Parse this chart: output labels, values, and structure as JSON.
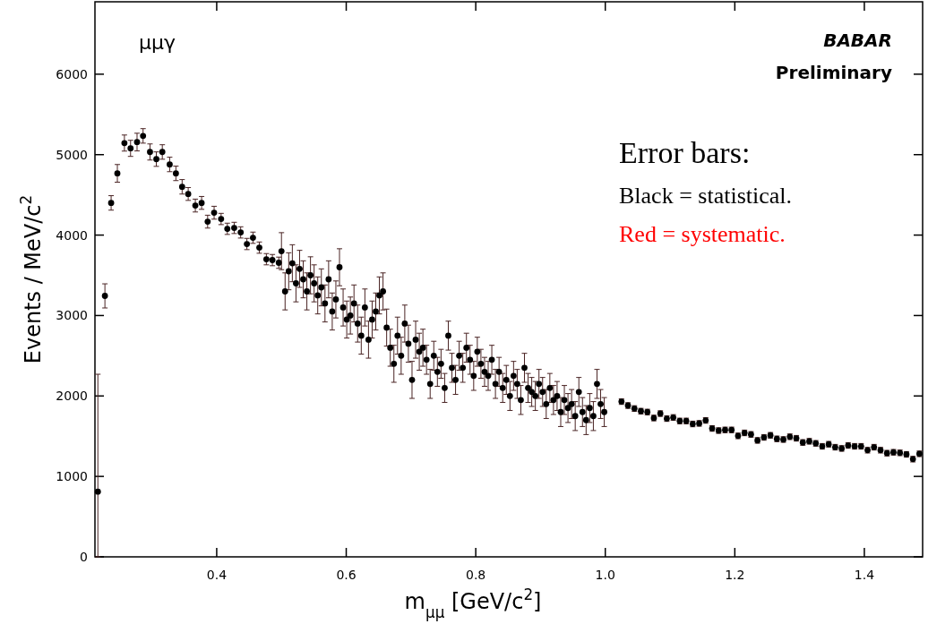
{
  "chart_data": {
    "type": "scatter",
    "xlabel": "m$_{μμ}$ [GeV/c$^{2}$]",
    "ylabel": "Events / MeV/c$^{2}$",
    "xlim": [
      0.212,
      1.49
    ],
    "ylim": [
      0,
      6900
    ],
    "xticks": [
      0.4,
      0.6,
      0.8,
      {
        "value": 1.0,
        "label": "1.0"
      },
      1.2,
      1.4
    ],
    "yticks": [
      0,
      1000,
      2000,
      3000,
      4000,
      5000,
      6000
    ],
    "marker": "circle",
    "grid": false,
    "annotations": [
      "μμγ",
      "BABAR",
      "Preliminary",
      "Error bars:",
      "Black = statistical.",
      "Red = systematic."
    ],
    "series": [
      {
        "color": "#000000",
        "x": [
          0.2165,
          0.2274,
          0.237,
          0.2466,
          0.2575,
          0.267,
          0.277,
          0.2863,
          0.297,
          0.3068,
          0.316,
          0.3274,
          0.337,
          0.3466,
          0.356,
          0.367,
          0.3767,
          0.386,
          0.396,
          0.4068,
          0.4164,
          0.427,
          0.437,
          0.4466,
          0.456,
          0.4658,
          0.4767,
          0.486,
          0.4959,
          0.5,
          0.5056,
          0.5112,
          0.5168,
          0.5224,
          0.528,
          0.5336,
          0.5392,
          0.5448,
          0.5504,
          0.556,
          0.5616,
          0.5672,
          0.5728,
          0.5784,
          0.584,
          0.5896,
          0.5952,
          0.6008,
          0.6064,
          0.612,
          0.6176,
          0.6232,
          0.6288,
          0.6344,
          0.64,
          0.6456,
          0.6512,
          0.6568,
          0.6624,
          0.668,
          0.6736,
          0.6792,
          0.6848,
          0.6904,
          0.696,
          0.7016,
          0.7072,
          0.7128,
          0.7184,
          0.724,
          0.7296,
          0.7352,
          0.7408,
          0.7464,
          0.752,
          0.7576,
          0.7632,
          0.7688,
          0.7744,
          0.78,
          0.7856,
          0.7912,
          0.7968,
          0.8024,
          0.808,
          0.8136,
          0.8192,
          0.8248,
          0.8304,
          0.836,
          0.8416,
          0.8472,
          0.8528,
          0.8584,
          0.864,
          0.8696,
          0.8752,
          0.8808,
          0.8864,
          0.892,
          0.8976,
          0.9032,
          0.9088,
          0.9144,
          0.92,
          0.9256,
          0.9312,
          0.9368,
          0.9424,
          0.948,
          0.9536,
          0.9592,
          0.9648,
          0.9704,
          0.976,
          0.9816,
          0.9872,
          0.9928,
          0.9984,
          1.025,
          1.035,
          1.045,
          1.055,
          1.065,
          1.075,
          1.085,
          1.095,
          1.105,
          1.115,
          1.125,
          1.135,
          1.145,
          1.155,
          1.165,
          1.175,
          1.185,
          1.195,
          1.205,
          1.215,
          1.225,
          1.235,
          1.245,
          1.255,
          1.265,
          1.275,
          1.285,
          1.295,
          1.305,
          1.315,
          1.325,
          1.335,
          1.345,
          1.355,
          1.365,
          1.375,
          1.385,
          1.395,
          1.405,
          1.415,
          1.425,
          1.435,
          1.445,
          1.455,
          1.465,
          1.475,
          1.485
        ],
        "values": [
          811,
          3244,
          4400,
          4767,
          5144,
          5078,
          5156,
          5233,
          5033,
          4944,
          5033,
          4878,
          4767,
          4600,
          4511,
          4367,
          4400,
          4167,
          4278,
          4200,
          4078,
          4089,
          4033,
          3889,
          3967,
          3844,
          3700,
          3689,
          3656,
          3800,
          3300,
          3550,
          3650,
          3400,
          3580,
          3450,
          3300,
          3500,
          3400,
          3250,
          3350,
          3150,
          3450,
          3050,
          3200,
          3600,
          3100,
          2950,
          3000,
          3150,
          2900,
          2750,
          3100,
          2700,
          2950,
          3050,
          3250,
          3300,
          2850,
          2600,
          2400,
          2750,
          2500,
          2900,
          2650,
          2200,
          2700,
          2550,
          2600,
          2450,
          2150,
          2500,
          2300,
          2400,
          2100,
          2750,
          2350,
          2200,
          2500,
          2350,
          2600,
          2450,
          2250,
          2550,
          2400,
          2300,
          2250,
          2450,
          2150,
          2300,
          2100,
          2200,
          2000,
          2250,
          2150,
          1950,
          2350,
          2100,
          2050,
          2000,
          2150,
          2050,
          1900,
          2100,
          1950,
          2000,
          1800,
          1950,
          1850,
          1900,
          1750,
          2050,
          1800,
          1700,
          1850,
          1750,
          2150,
          1900,
          1800,
          1930,
          1881,
          1844,
          1811,
          1800,
          1726,
          1781,
          1719,
          1733,
          1689,
          1689,
          1652,
          1659,
          1696,
          1596,
          1570,
          1578,
          1578,
          1504,
          1541,
          1522,
          1448,
          1485,
          1511,
          1467,
          1459,
          1493,
          1474,
          1422,
          1437,
          1411,
          1374,
          1400,
          1363,
          1348,
          1385,
          1374,
          1374,
          1326,
          1363,
          1326,
          1289,
          1300,
          1293,
          1274,
          1215,
          1281
        ],
        "errors": [
          [
            0,
            2270
          ],
          150,
          90,
          110,
          100,
          100,
          110,
          90,
          100,
          90,
          90,
          90,
          90,
          90,
          80,
          80,
          80,
          80,
          80,
          70,
          70,
          70,
          70,
          70,
          70,
          70,
          70,
          70,
          70,
          230,
          230,
          230,
          230,
          230,
          230,
          230,
          230,
          230,
          230,
          230,
          230,
          230,
          230,
          230,
          230,
          230,
          230,
          230,
          230,
          230,
          230,
          230,
          230,
          230,
          230,
          230,
          230,
          230,
          230,
          230,
          230,
          230,
          230,
          230,
          230,
          230,
          230,
          230,
          230,
          180,
          180,
          180,
          180,
          180,
          180,
          180,
          180,
          180,
          180,
          180,
          180,
          180,
          180,
          180,
          180,
          180,
          180,
          180,
          180,
          180,
          180,
          180,
          180,
          180,
          180,
          180,
          180,
          180,
          180,
          180,
          180,
          180,
          180,
          180,
          180,
          180,
          180,
          180,
          180,
          180,
          180,
          180,
          180,
          180,
          180,
          180,
          180,
          180,
          180,
          35,
          35,
          35,
          35,
          35,
          35,
          35,
          35,
          35,
          35,
          35,
          35,
          35,
          35,
          35,
          35,
          35,
          35,
          35,
          35,
          35,
          35,
          35,
          35,
          35,
          35,
          35,
          35,
          35,
          35,
          35,
          35,
          35,
          35,
          35,
          35,
          35,
          35,
          35,
          35,
          35,
          35,
          35,
          35,
          35,
          35,
          35
        ]
      }
    ]
  }
}
